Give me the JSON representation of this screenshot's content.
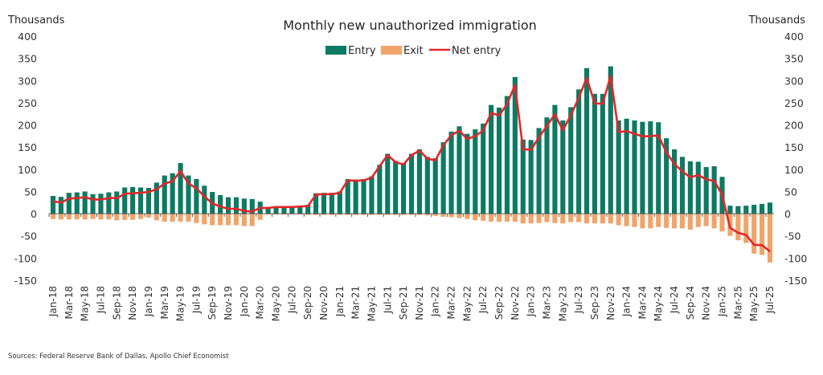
{
  "chart_data": {
    "type": "bar",
    "title": "Monthly new unauthorized immigration",
    "ylabel_left": "Thousands",
    "ylabel_right": "Thousands",
    "ylim": [
      -150,
      400
    ],
    "yticks": [
      400,
      350,
      300,
      250,
      200,
      150,
      100,
      50,
      0,
      -50,
      -100,
      -150
    ],
    "grid": false,
    "legend": {
      "placement": "top-center",
      "entries": [
        "Entry",
        "Exit",
        "Net entry"
      ]
    },
    "source": "Sources: Federal Reserve Bank of Dallas, Apollo Chief Economist",
    "colors": {
      "entry": "#0d7a63",
      "exit": "#f0a46a",
      "net": "#e3262a"
    },
    "x": [
      "Jan-18",
      "Feb-18",
      "Mar-18",
      "Apr-18",
      "May-18",
      "Jun-18",
      "Jul-18",
      "Aug-18",
      "Sep-18",
      "Oct-18",
      "Nov-18",
      "Dec-18",
      "Jan-19",
      "Feb-19",
      "Mar-19",
      "Apr-19",
      "May-19",
      "Jun-19",
      "Jul-19",
      "Aug-19",
      "Sep-19",
      "Oct-19",
      "Nov-19",
      "Dec-19",
      "Jan-20",
      "Feb-20",
      "Mar-20",
      "Apr-20",
      "May-20",
      "Jun-20",
      "Jul-20",
      "Aug-20",
      "Sep-20",
      "Oct-20",
      "Nov-20",
      "Dec-20",
      "Jan-21",
      "Feb-21",
      "Mar-21",
      "Apr-21",
      "May-21",
      "Jun-21",
      "Jul-21",
      "Aug-21",
      "Sep-21",
      "Oct-21",
      "Nov-21",
      "Dec-21",
      "Jan-22",
      "Feb-22",
      "Mar-22",
      "Apr-22",
      "May-22",
      "Jun-22",
      "Jul-22",
      "Aug-22",
      "Sep-22",
      "Oct-22",
      "Nov-22",
      "Dec-22",
      "Jan-23",
      "Feb-23",
      "Mar-23",
      "Apr-23",
      "May-23",
      "Jun-23",
      "Jul-23",
      "Aug-23",
      "Sep-23",
      "Oct-23",
      "Nov-23",
      "Dec-23",
      "Jan-24",
      "Feb-24",
      "Mar-24",
      "Apr-24",
      "May-24",
      "Jun-24",
      "Jul-24",
      "Aug-24",
      "Sep-24",
      "Oct-24",
      "Nov-24",
      "Dec-24",
      "Jan-25",
      "Feb-25",
      "Mar-25",
      "Apr-25",
      "May-25",
      "Jun-25",
      "Jul-25"
    ],
    "xtick_labels": [
      "Jan-18",
      "Mar-18",
      "May-18",
      "Jul-18",
      "Sep-18",
      "Nov-18",
      "Jan-19",
      "Mar-19",
      "May-19",
      "Jul-19",
      "Sep-19",
      "Nov-19",
      "Jan-20",
      "Mar-20",
      "May-20",
      "Jul-20",
      "Sep-20",
      "Nov-20",
      "Jan-21",
      "Mar-21",
      "May-21",
      "Jul-21",
      "Sep-21",
      "Nov-21",
      "Jan-22",
      "Mar-22",
      "May-22",
      "Jul-22",
      "Sep-22",
      "Nov-22",
      "Jan-23",
      "Mar-23",
      "May-23",
      "Jul-23",
      "Sep-23",
      "Nov-23",
      "Jan-24",
      "Mar-24",
      "May-24",
      "Jul-24",
      "Sep-24",
      "Nov-24",
      "Jan-25",
      "Mar-25",
      "May-25",
      "Jul-25"
    ],
    "series": [
      {
        "name": "Entry",
        "type": "bar",
        "values": [
          40,
          38,
          47,
          48,
          50,
          44,
          45,
          48,
          50,
          59,
          60,
          59,
          58,
          70,
          86,
          91,
          114,
          86,
          78,
          63,
          49,
          42,
          37,
          37,
          34,
          33,
          27,
          15,
          17,
          17,
          17,
          18,
          20,
          46,
          47,
          47,
          50,
          78,
          77,
          78,
          84,
          110,
          135,
          119,
          114,
          135,
          145,
          128,
          125,
          161,
          185,
          197,
          180,
          190,
          203,
          245,
          239,
          265,
          308,
          167,
          166,
          193,
          217,
          245,
          210,
          240,
          280,
          328,
          270,
          270,
          332,
          210,
          214,
          210,
          207,
          208,
          206,
          170,
          145,
          128,
          118,
          117,
          105,
          107,
          83,
          18,
          17,
          18,
          20,
          22,
          25
        ]
      },
      {
        "name": "Exit",
        "type": "bar",
        "values": [
          -12,
          -13,
          -13,
          -13,
          -13,
          -12,
          -13,
          -13,
          -15,
          -14,
          -14,
          -12,
          -9,
          -15,
          -18,
          -18,
          -18,
          -18,
          -21,
          -24,
          -26,
          -26,
          -26,
          -26,
          -28,
          -28,
          -14,
          -2,
          -2,
          -2,
          -2,
          -2,
          -3,
          -3,
          -3,
          -3,
          -3,
          -3,
          -3,
          -3,
          -3,
          -3,
          -3,
          -3,
          -3,
          -3,
          -3,
          -4,
          -5,
          -7,
          -8,
          -10,
          -12,
          -15,
          -16,
          -18,
          -18,
          -18,
          -18,
          -22,
          -22,
          -21,
          -19,
          -21,
          -22,
          -19,
          -19,
          -22,
          -22,
          -22,
          -22,
          -26,
          -28,
          -30,
          -33,
          -33,
          -30,
          -32,
          -33,
          -33,
          -36,
          -30,
          -28,
          -33,
          -40,
          -50,
          -60,
          -66,
          -90,
          -93,
          -110
        ]
      },
      {
        "name": "Net entry",
        "type": "line",
        "values": [
          28,
          25,
          34,
          35,
          37,
          32,
          32,
          35,
          35,
          45,
          46,
          47,
          49,
          55,
          68,
          73,
          96,
          68,
          57,
          39,
          23,
          16,
          11,
          11,
          6,
          5,
          13,
          13,
          15,
          15,
          15,
          16,
          17,
          43,
          44,
          44,
          47,
          75,
          74,
          75,
          81,
          107,
          132,
          116,
          111,
          132,
          142,
          124,
          120,
          154,
          177,
          187,
          168,
          175,
          187,
          227,
          221,
          247,
          290,
          145,
          144,
          172,
          198,
          224,
          188,
          221,
          261,
          306,
          248,
          248,
          310,
          184,
          186,
          180,
          174,
          175,
          176,
          138,
          112,
          95,
          82,
          87,
          77,
          74,
          43,
          -32,
          -43,
          -48,
          -70,
          -71,
          -85
        ]
      }
    ]
  }
}
